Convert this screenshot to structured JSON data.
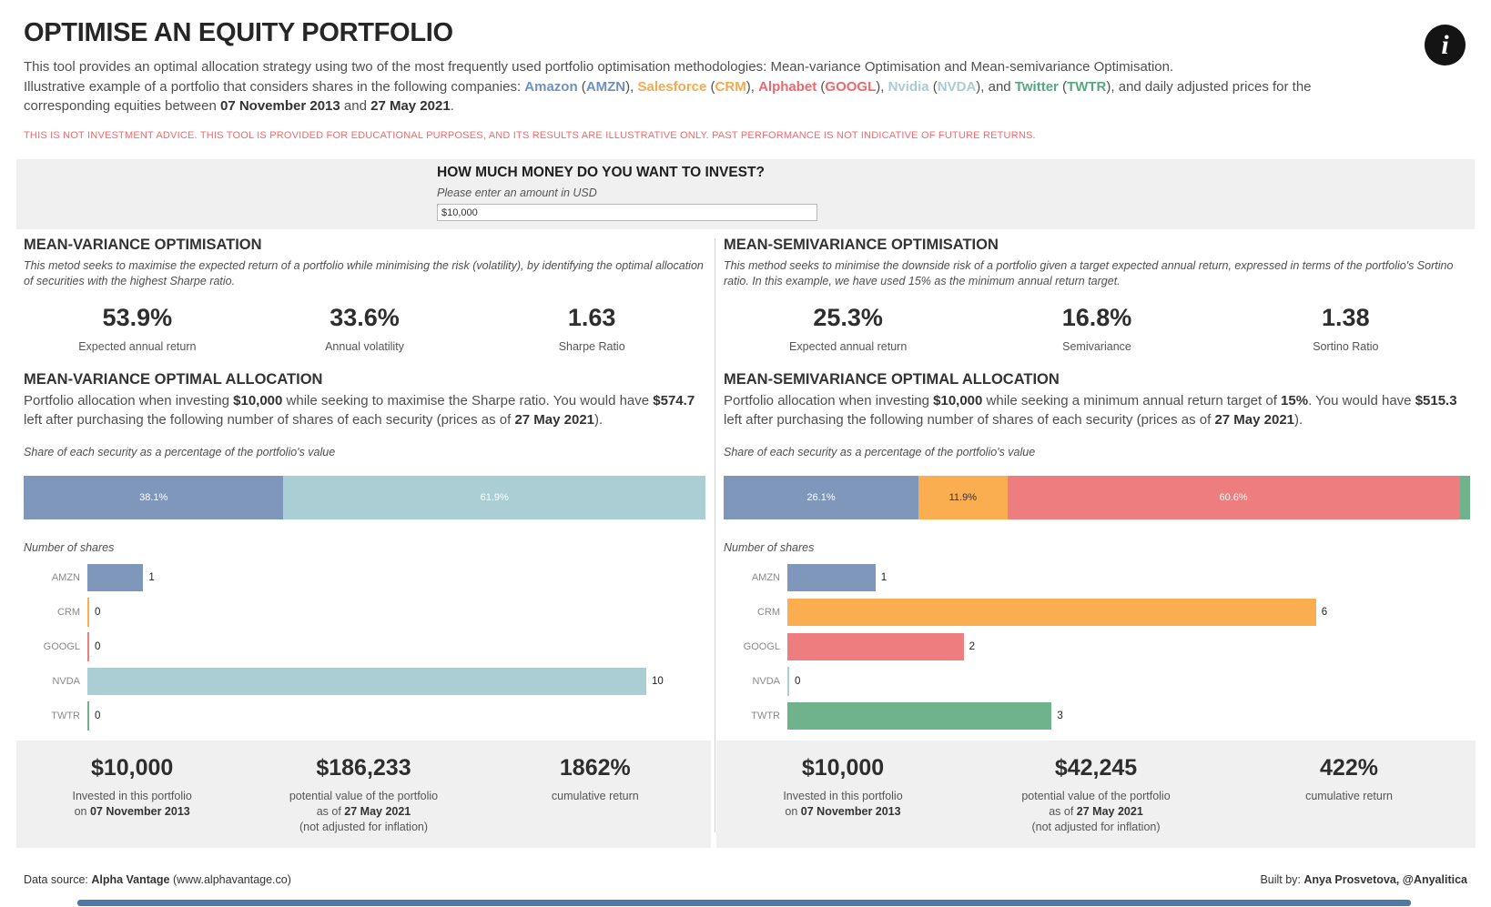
{
  "header": {
    "title": "OPTIMISE AN EQUITY PORTFOLIO",
    "info_icon": "i",
    "intro_segments": [
      {
        "t": "This tool provides an optimal allocation strategy using two of the most frequently used portfolio optimisation methodologies: Mean-variance Optimisation and Mean-semivariance Optimisation.",
        "br": true
      },
      {
        "t": "Illustrative example of a portfolio that considers shares in the following companies: "
      },
      {
        "t": "Amazon",
        "b": true,
        "c": "#6e8fbf"
      },
      {
        "t": " ("
      },
      {
        "t": "AMZN",
        "b": true,
        "c": "#6e8fbf"
      },
      {
        "t": "), "
      },
      {
        "t": "Salesforce",
        "b": true,
        "c": "#f6a84b"
      },
      {
        "t": " ("
      },
      {
        "t": "CRM",
        "b": true,
        "c": "#f6a84b"
      },
      {
        "t": "), "
      },
      {
        "t": "Alphabet",
        "b": true,
        "c": "#eb686c"
      },
      {
        "t": " ("
      },
      {
        "t": "GOOGL",
        "b": true,
        "c": "#eb686c"
      },
      {
        "t": "), "
      },
      {
        "t": "Nvidia",
        "b": true,
        "c": "#aacbd2"
      },
      {
        "t": " ("
      },
      {
        "t": "NVDA",
        "b": true,
        "c": "#aacbd2"
      },
      {
        "t": "), and "
      },
      {
        "t": "Twitter",
        "b": true,
        "c": "#57a87d"
      },
      {
        "t": " ("
      },
      {
        "t": "TWTR",
        "b": true,
        "c": "#57a87d"
      },
      {
        "t": "), and  daily adjusted prices for the",
        "br": true
      },
      {
        "t": "corresponding equities between "
      },
      {
        "t": "07 November 2013",
        "b": true
      },
      {
        "t": " and "
      },
      {
        "t": "27 May 2021",
        "b": true
      },
      {
        "t": "."
      }
    ],
    "disclaimer": "THIS IS NOT INVESTMENT ADVICE. THIS TOOL IS PROVIDED FOR EDUCATIONAL PURPOSES, AND ITS RESULTS ARE ILLUSTRATIVE ONLY. PAST PERFORMANCE IS NOT INDICATIVE OF FUTURE RETURNS."
  },
  "invest": {
    "question": "HOW MUCH MONEY DO YOU WANT TO INVEST?",
    "hint": "Please enter an amount in USD",
    "amount": "$10,000"
  },
  "mean_variance": {
    "section_title": "MEAN-VARIANCE OPTIMISATION",
    "section_desc": "This metod  seeks to maximise the expected return of a portfolio while minimising the risk (volatility), by identifying the optimal allocation of securities with the highest Sharpe ratio.",
    "stats": [
      {
        "value": "53.9%",
        "label": "Expected annual return"
      },
      {
        "value": "33.6%",
        "label": "Annual volatility"
      },
      {
        "value": "1.63",
        "label": "Sharpe Ratio"
      }
    ],
    "alloc_title": "MEAN-VARIANCE OPTIMAL ALLOCATION",
    "alloc_desc_segments": [
      {
        "t": "Portfolio allocation when investing "
      },
      {
        "t": "$10,000",
        "b": true
      },
      {
        "t": " while seeking to maximise the Sharpe ratio. You would have "
      },
      {
        "t": "$574.7",
        "b": true
      },
      {
        "t": " left after purchasing the following number of shares of each security (prices as of "
      },
      {
        "t": "27 May 2021",
        "b": true
      },
      {
        "t": ")."
      }
    ],
    "share_caption": "Share of each security as a percentage of the portfolio's value",
    "shares_caption": "Number of shares",
    "summary": [
      {
        "value": "$10,000",
        "label_segments": [
          {
            "t": "Invested in this portfolio",
            "br": true
          },
          {
            "t": "on "
          },
          {
            "t": "07 November 2013",
            "b": true
          }
        ]
      },
      {
        "value": "$186,233",
        "label_segments": [
          {
            "t": "potential value of the portfolio",
            "br": true
          },
          {
            "t": "as of "
          },
          {
            "t": "27 May 2021",
            "b": true,
            "br": true
          },
          {
            "t": "(not adjusted for inflation)"
          }
        ]
      },
      {
        "value": "1862%",
        "label_segments": [
          {
            "t": "cumulative return"
          }
        ]
      }
    ]
  },
  "mean_semivariance": {
    "section_title": "MEAN-SEMIVARIANCE OPTIMISATION",
    "section_desc": "This method seeks to minimise the downside risk of a portfolio given a target expected annual return, expressed in terms of the portfolio's Sortino ratio. In this example, we have used 15% as the minimum annual return target.",
    "stats": [
      {
        "value": "25.3%",
        "label": "Expected annual return"
      },
      {
        "value": "16.8%",
        "label": "Semivariance"
      },
      {
        "value": "1.38",
        "label": "Sortino Ratio"
      }
    ],
    "alloc_title": "MEAN-SEMIVARIANCE OPTIMAL ALLOCATION",
    "alloc_desc_segments": [
      {
        "t": "Portfolio allocation when investing "
      },
      {
        "t": "$10,000",
        "b": true
      },
      {
        "t": " while seeking a minimum annual return target of "
      },
      {
        "t": "15%",
        "b": true
      },
      {
        "t": ". You would have "
      },
      {
        "t": "$515.3",
        "b": true
      },
      {
        "t": " left after purchasing the following number of shares of each security (prices as of "
      },
      {
        "t": "27 May 2021",
        "b": true
      },
      {
        "t": ")."
      }
    ],
    "share_caption": "Share of each security as a percentage of the portfolio's value",
    "shares_caption": "Number of shares",
    "summary": [
      {
        "value": "$10,000",
        "label_segments": [
          {
            "t": "Invested in this portfolio",
            "br": true
          },
          {
            "t": "on "
          },
          {
            "t": "07 November 2013",
            "b": true
          }
        ]
      },
      {
        "value": "$42,245",
        "label_segments": [
          {
            "t": "potential value of the portfolio",
            "br": true
          },
          {
            "t": "as of "
          },
          {
            "t": "27 May 2021",
            "b": true,
            "br": true
          },
          {
            "t": "(not adjusted for inflation)"
          }
        ]
      },
      {
        "value": "422%",
        "label_segments": [
          {
            "t": "cumulative return"
          }
        ]
      }
    ]
  },
  "chart_data": [
    {
      "type": "bar",
      "subtype": "stacked-percentage-horizontal",
      "title": "Mean-variance: share of each security as a percentage of the portfolio's value",
      "segments": [
        {
          "ticker": "AMZN",
          "value": 38.1,
          "label": "38.1%",
          "color": "#7e97ba",
          "label_color": "#ffffff"
        },
        {
          "ticker": "NVDA",
          "value": 61.9,
          "label": "61.9%",
          "color": "#abced5",
          "label_color": "#ffffff"
        }
      ]
    },
    {
      "type": "bar",
      "subtype": "horizontal",
      "title": "Mean-variance: number of shares",
      "categories": [
        "AMZN",
        "CRM",
        "GOOGL",
        "NVDA",
        "TWTR"
      ],
      "values": [
        1,
        0,
        0,
        10,
        0
      ],
      "colors": [
        "#7e97ba",
        "#fbae4f",
        "#ee7d80",
        "#abced5",
        "#6fb38c"
      ],
      "xmax": 10
    },
    {
      "type": "bar",
      "subtype": "stacked-percentage-horizontal",
      "title": "Mean-semivariance: share of each security as a percentage of the portfolio's value",
      "segments": [
        {
          "ticker": "AMZN",
          "value": 26.1,
          "label": "26.1%",
          "color": "#7e97ba",
          "label_color": "#ffffff"
        },
        {
          "ticker": "CRM",
          "value": 11.9,
          "label": "11.9%",
          "color": "#fbae4f",
          "label_color": "#333333"
        },
        {
          "ticker": "GOOGL",
          "value": 60.6,
          "label": "60.6%",
          "color": "#ee7d80",
          "label_color": "#ffffff"
        },
        {
          "ticker": "TWTR",
          "value": 1.4,
          "label": "",
          "color": "#6fb38c",
          "label_color": "#ffffff"
        }
      ]
    },
    {
      "type": "bar",
      "subtype": "horizontal",
      "title": "Mean-semivariance: number of shares",
      "categories": [
        "AMZN",
        "CRM",
        "GOOGL",
        "NVDA",
        "TWTR"
      ],
      "values": [
        1,
        6,
        2,
        0,
        3
      ],
      "colors": [
        "#7e97ba",
        "#fbae4f",
        "#ee7d80",
        "#abced5",
        "#6fb38c"
      ],
      "xmax": 6
    }
  ],
  "footer": {
    "left_segments": [
      {
        "t": "Data source: "
      },
      {
        "t": "Alpha Vantage",
        "b": true
      },
      {
        "t": " (www.alphavantage.co)"
      }
    ],
    "right_segments": [
      {
        "t": "Built by: "
      },
      {
        "t": "Anya Prosvetova, @Anyalitica",
        "b": true
      }
    ]
  }
}
